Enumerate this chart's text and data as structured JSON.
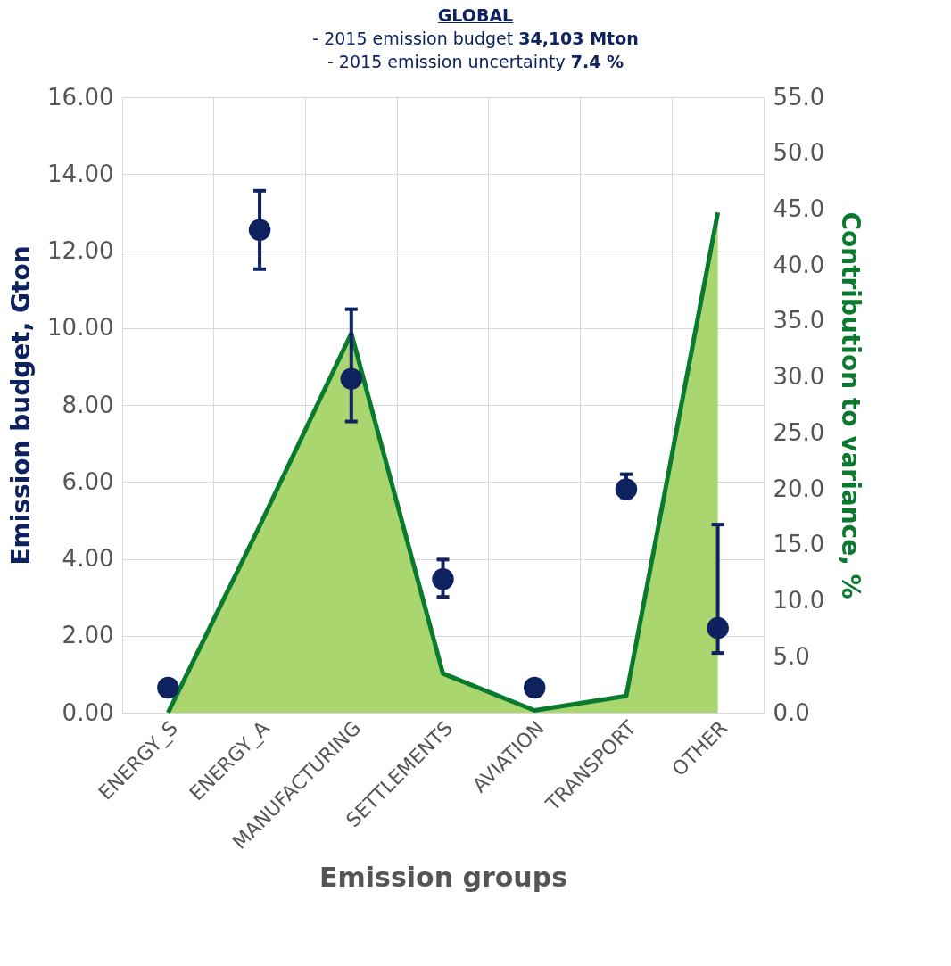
{
  "chart_data": {
    "type": "scatter",
    "title": "GLOBAL",
    "subtitle": "- 2015 emission budget 34,103 Mton\n- 2015 emission uncertainty 7.4 %",
    "xlabel": "Emission groups",
    "ylabel": "Emission budget, Gton",
    "y2label": "Contribution to variance, %",
    "categories": [
      "ENERGY_S",
      "ENERGY_A",
      "MANUFACTURING",
      "SETTLEMENTS",
      "AVIATION",
      "TRANSPORT",
      "OTHER"
    ],
    "series": [
      {
        "type": "area",
        "axis": "y2",
        "color": "#a9d66e",
        "values": [
          0,
          16.7,
          33.9,
          3.5,
          0.2,
          1.5,
          44.7
        ]
      },
      {
        "marker": "circle",
        "color": "#0f2260",
        "values": [
          0.65,
          12.55,
          8.68,
          3.47,
          0.65,
          5.81,
          2.2
        ],
        "errors": [
          null,
          [
            11.53,
            13.57
          ],
          [
            7.57,
            10.49
          ],
          [
            3.01,
            3.98
          ],
          null,
          [
            5.6,
            6.2
          ],
          [
            1.55,
            4.89
          ]
        ]
      }
    ],
    "ylim": [
      0,
      16
    ],
    "yticks": [
      {
        "value": 0,
        "label": "0.00"
      },
      {
        "value": 2,
        "label": "2.00"
      },
      {
        "value": 4,
        "label": "4.00"
      },
      {
        "value": 6,
        "label": "6.00"
      },
      {
        "value": 8,
        "label": "8.00"
      },
      {
        "value": 10,
        "label": "10.00"
      },
      {
        "value": 12,
        "label": "12.00"
      },
      {
        "value": 14,
        "label": "14.00"
      },
      {
        "value": 16,
        "label": "16.00"
      }
    ],
    "y2lim": [
      0,
      55
    ],
    "y2ticks": [
      {
        "value": 0,
        "label": "0.0"
      },
      {
        "value": 5,
        "label": "5.0"
      },
      {
        "value": 10,
        "label": "10.0"
      },
      {
        "value": 15,
        "label": "15.0"
      },
      {
        "value": 20,
        "label": "20.0"
      },
      {
        "value": 25,
        "label": "25.0"
      },
      {
        "value": 30,
        "label": "30.0"
      },
      {
        "value": 35,
        "label": "35.0"
      },
      {
        "value": 40,
        "label": "40.0"
      },
      {
        "value": 45,
        "label": "45.0"
      },
      {
        "value": 50,
        "label": "50.0"
      },
      {
        "value": 55,
        "label": "55.0"
      }
    ],
    "grid": true
  }
}
